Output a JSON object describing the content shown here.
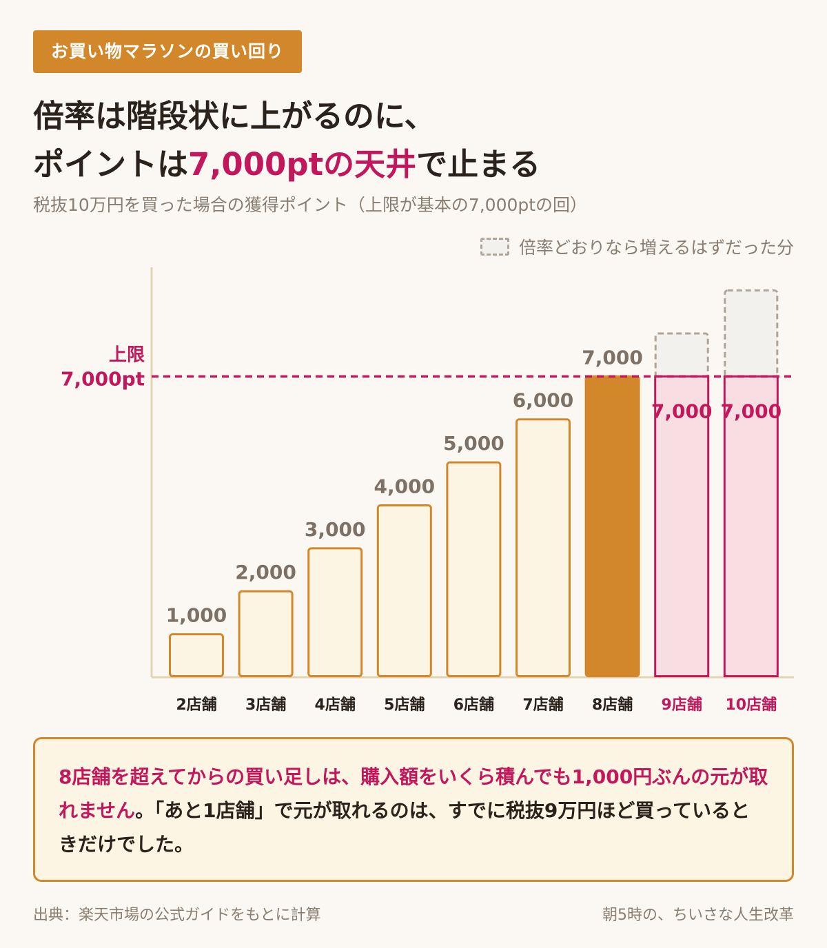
{
  "header": {
    "tag": "お買い物マラソンの買い回り",
    "title_line1": "倍率は階段状に上がるのに、",
    "title_line2_pre": "ポイントは",
    "title_line2_hl": "7,000ptの天井",
    "title_line2_post": "で止まる",
    "subtitle": "税抜10万円を買った場合の獲得ポイント（上限が基本の7,000ptの回）"
  },
  "legend": {
    "label": "倍率どおりなら増えるはずだった分"
  },
  "chart_data": {
    "type": "bar",
    "categories": [
      "2店舗",
      "3店舗",
      "4店舗",
      "5店舗",
      "6店舗",
      "7店舗",
      "8店舗",
      "9店舗",
      "10店舗"
    ],
    "values": [
      1000,
      2000,
      3000,
      4000,
      5000,
      6000,
      7000,
      7000,
      7000
    ],
    "value_labels": [
      "1,000",
      "2,000",
      "3,000",
      "4,000",
      "5,000",
      "6,000",
      "7,000",
      "7,000",
      "7,000"
    ],
    "uncapped_values": [
      null,
      null,
      null,
      null,
      null,
      null,
      null,
      8000,
      9000
    ],
    "cap": {
      "value": 7000,
      "label_line1": "上限",
      "label_line2": "7,000pt"
    },
    "ylim": [
      0,
      10500
    ],
    "grid": false,
    "colors": {
      "normal_fill": "#fdf5e4",
      "normal_stroke": "#d2882a",
      "highlight_fill": "#d2882a",
      "capped_fill": "#f8dde2",
      "capped_stroke": "#c2185b",
      "ghost_fill": "#f3f1ed",
      "ghost_stroke": "#b0a497",
      "axis": "#e2d3b3",
      "label_gray": "#7d7166",
      "accent": "#c2185b"
    }
  },
  "note": {
    "hl": "8店舗を超えてからの買い足しは、購入額をいくら積んでも1,000円ぶんの元が取れません",
    "rest": "。「あと1店舗」で元が取れるのは、すでに税抜9万円ほど買っているときだけでした。"
  },
  "footer": {
    "source": "出典：楽天市場の公式ガイドをもとに計算",
    "credit": "朝5時の、ちいさな人生改革"
  }
}
